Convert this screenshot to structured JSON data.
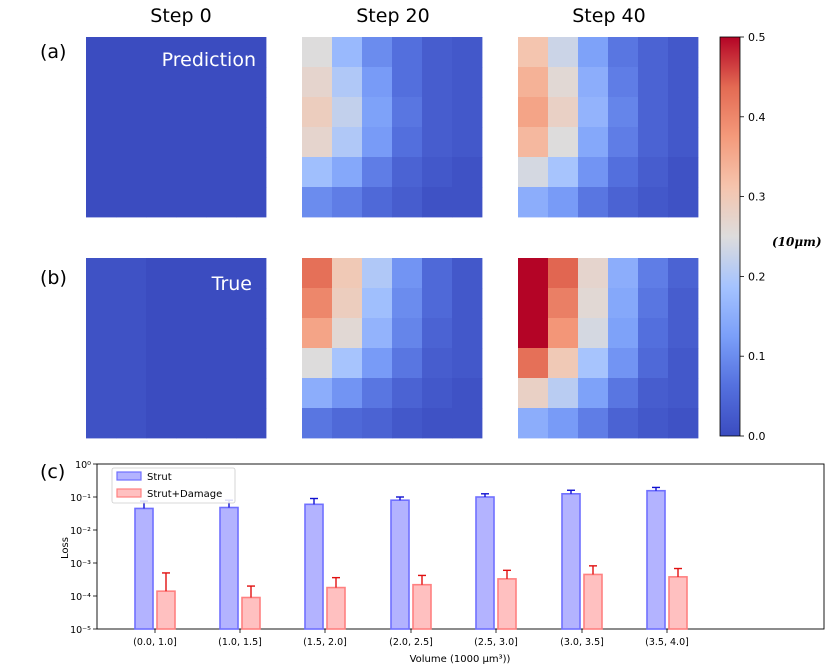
{
  "columns": [
    "Step 0",
    "Step 20",
    "Step 40"
  ],
  "rows": [
    {
      "label": "(a)",
      "overlay": "Prediction"
    },
    {
      "label": "(b)",
      "overlay": "True"
    }
  ],
  "panel_c_label": "(c)",
  "colors": {
    "strut": "#7070ff",
    "strut_damage": "#ff7b7b",
    "strut_err": "#1010d0",
    "damage_err": "#e01010"
  },
  "chart_data": [
    {
      "type": "heatmap",
      "title": "Step 0",
      "row": "Prediction",
      "values": [
        [
          0.0,
          0.0,
          0.0,
          0.0,
          0.0,
          0.0
        ],
        [
          0.0,
          0.0,
          0.0,
          0.0,
          0.0,
          0.0
        ],
        [
          0.0,
          0.0,
          0.0,
          0.0,
          0.0,
          0.0
        ],
        [
          0.0,
          0.0,
          0.0,
          0.0,
          0.0,
          0.0
        ],
        [
          0.0,
          0.0,
          0.0,
          0.0,
          0.0,
          0.0
        ],
        [
          0.0,
          0.0,
          0.0,
          0.0,
          0.0,
          0.0
        ]
      ]
    },
    {
      "type": "heatmap",
      "title": "Step 20",
      "row": "Prediction",
      "values": [
        [
          0.25,
          0.17,
          0.1,
          0.06,
          0.03,
          0.02
        ],
        [
          0.27,
          0.2,
          0.12,
          0.06,
          0.03,
          0.02
        ],
        [
          0.29,
          0.22,
          0.13,
          0.07,
          0.03,
          0.02
        ],
        [
          0.27,
          0.2,
          0.12,
          0.06,
          0.03,
          0.02
        ],
        [
          0.18,
          0.14,
          0.08,
          0.04,
          0.02,
          0.01
        ],
        [
          0.1,
          0.08,
          0.05,
          0.03,
          0.01,
          0.01
        ]
      ]
    },
    {
      "type": "heatmap",
      "title": "Step 40",
      "row": "Prediction",
      "values": [
        [
          0.31,
          0.23,
          0.13,
          0.07,
          0.04,
          0.02
        ],
        [
          0.34,
          0.26,
          0.15,
          0.08,
          0.04,
          0.02
        ],
        [
          0.36,
          0.28,
          0.16,
          0.09,
          0.04,
          0.02
        ],
        [
          0.33,
          0.25,
          0.14,
          0.08,
          0.04,
          0.02
        ],
        [
          0.24,
          0.19,
          0.11,
          0.06,
          0.03,
          0.01
        ],
        [
          0.15,
          0.12,
          0.07,
          0.04,
          0.02,
          0.01
        ]
      ]
    },
    {
      "type": "heatmap",
      "title": "Step 0",
      "row": "True",
      "values": [
        [
          0.01,
          0.01,
          0.0,
          0.0,
          0.0,
          0.0
        ],
        [
          0.01,
          0.01,
          0.0,
          0.0,
          0.0,
          0.0
        ],
        [
          0.01,
          0.01,
          0.0,
          0.0,
          0.0,
          0.0
        ],
        [
          0.01,
          0.01,
          0.0,
          0.0,
          0.0,
          0.0
        ],
        [
          0.01,
          0.01,
          0.0,
          0.0,
          0.0,
          0.0
        ],
        [
          0.01,
          0.01,
          0.0,
          0.0,
          0.0,
          0.0
        ]
      ]
    },
    {
      "type": "heatmap",
      "title": "Step 20",
      "row": "True",
      "values": [
        [
          0.43,
          0.3,
          0.2,
          0.11,
          0.05,
          0.02
        ],
        [
          0.4,
          0.29,
          0.18,
          0.1,
          0.05,
          0.02
        ],
        [
          0.36,
          0.26,
          0.16,
          0.09,
          0.04,
          0.02
        ],
        [
          0.25,
          0.19,
          0.12,
          0.07,
          0.03,
          0.02
        ],
        [
          0.15,
          0.11,
          0.07,
          0.04,
          0.02,
          0.01
        ],
        [
          0.07,
          0.05,
          0.04,
          0.02,
          0.01,
          0.01
        ]
      ]
    },
    {
      "type": "heatmap",
      "title": "Step 40",
      "row": "True",
      "values": [
        [
          0.5,
          0.44,
          0.27,
          0.15,
          0.08,
          0.04
        ],
        [
          0.5,
          0.41,
          0.26,
          0.14,
          0.07,
          0.03
        ],
        [
          0.5,
          0.38,
          0.24,
          0.13,
          0.06,
          0.03
        ],
        [
          0.43,
          0.3,
          0.19,
          0.11,
          0.05,
          0.02
        ],
        [
          0.28,
          0.21,
          0.13,
          0.07,
          0.03,
          0.02
        ],
        [
          0.15,
          0.12,
          0.08,
          0.04,
          0.02,
          0.01
        ]
      ]
    },
    {
      "type": "colorbar",
      "colormap": "coolwarm",
      "range": [
        0.0,
        0.5
      ],
      "ticks": [
        "0.0",
        "0.1",
        "0.2",
        "0.3",
        "0.4",
        "0.5"
      ],
      "label": "(10μm)"
    },
    {
      "type": "bar",
      "yscale": "log",
      "ylim": [
        1e-05,
        1
      ],
      "yticks": [
        "10⁰",
        "10⁻¹",
        "10⁻²",
        "10⁻³",
        "10⁻⁴",
        "10⁻⁵"
      ],
      "categories": [
        "(0.0, 1.0]",
        "(1.0, 1.5]",
        "(1.5, 2.0]",
        "(2.0, 2.5]",
        "(2.5, 3.0]",
        "(3.0, 3.5]",
        "(3.5, 4.0]"
      ],
      "xlabel": "Volume (1000 μm³))",
      "ylabel": "Loss",
      "legend_position": "top-left",
      "series": [
        {
          "name": "Strut",
          "values": [
            0.045,
            0.048,
            0.06,
            0.08,
            0.1,
            0.125,
            0.155
          ],
          "err_upper": [
            0.075,
            0.08,
            0.09,
            0.1,
            0.125,
            0.16,
            0.195
          ]
        },
        {
          "name": "Strut+Damage",
          "values": [
            0.00014,
            9e-05,
            0.00018,
            0.00022,
            0.00033,
            0.00045,
            0.00038
          ],
          "err_upper": [
            0.0005,
            0.0002,
            0.00036,
            0.00042,
            0.0006,
            0.00082,
            0.00068
          ]
        }
      ]
    }
  ]
}
